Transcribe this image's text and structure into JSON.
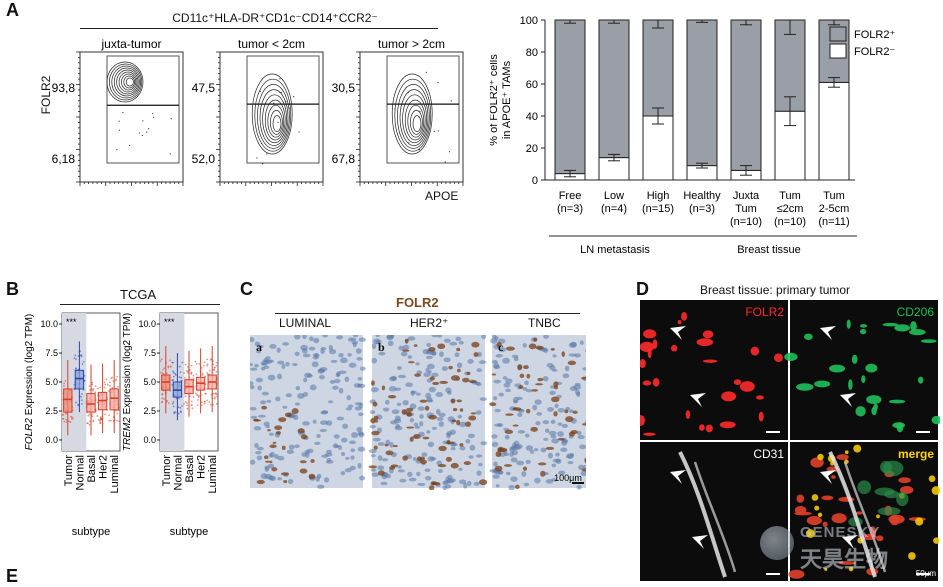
{
  "panel_letters": {
    "a": "A",
    "b": "B",
    "c": "C",
    "d": "D",
    "e": "E"
  },
  "flow": {
    "gate_title": "CD11c⁺HLA-DR⁺CD1c⁻CD14⁺CCR2⁻",
    "y_axis": "FOLR2",
    "x_axis": "APOE",
    "plots": [
      {
        "title": "juxta-tumor",
        "upper": "93,8",
        "lower": "6,18",
        "upper_frac": 0.938
      },
      {
        "title": "tumor < 2cm",
        "upper": "47,5",
        "lower": "52,0",
        "upper_frac": 0.475
      },
      {
        "title": "tumor > 2cm",
        "upper": "30,5",
        "lower": "67,8",
        "upper_frac": 0.305
      }
    ]
  },
  "bar_colors": {
    "folr2_pos": "#9a9ea6",
    "folr2_neg": "#ffffff"
  },
  "chart_data": [
    {
      "type": "bar",
      "stacked": true,
      "ylabel_line1": "% of FOLR2⁺ cells",
      "ylabel_line2": "in APOE⁺ TAMs",
      "ylim": [
        0,
        100
      ],
      "yticks": [
        "0",
        "20",
        "40",
        "60",
        "80",
        "100"
      ],
      "categories": [
        {
          "line1": "Free",
          "line2": "(n=3)",
          "line3": ""
        },
        {
          "line1": "Low",
          "line2": "(n=4)",
          "line3": ""
        },
        {
          "line1": "High",
          "line2": "(n=15)",
          "line3": ""
        },
        {
          "line1": "Healthy",
          "line2": "(n=3)",
          "line3": ""
        },
        {
          "line1": "Juxta",
          "line2": "Tum",
          "line3": "(n=10)"
        },
        {
          "line1": "Tum",
          "line2": "≤2cm",
          "line3": "(n=10)"
        },
        {
          "line1": "Tum",
          "line2": "2-5cm",
          "line3": "(n=11)"
        }
      ],
      "series": [
        {
          "name": "FOLR2⁺",
          "values": [
            96,
            86,
            60,
            91,
            94,
            57,
            39
          ],
          "errors": [
            2,
            2,
            5,
            1.5,
            3,
            9,
            3
          ]
        },
        {
          "name": "FOLR2⁻",
          "values": [
            4,
            14,
            40,
            9,
            6,
            43,
            61
          ],
          "errors": [
            2,
            2,
            5,
            1.5,
            3,
            9,
            3
          ]
        }
      ],
      "groups": [
        {
          "label": "LN metastasis",
          "from": 0,
          "to": 2
        },
        {
          "label": "Breast tissue",
          "from": 3,
          "to": 6
        }
      ]
    },
    {
      "type": "box",
      "title": "TCGA",
      "ylabel": "FOLR2 Expression (log2 TPM)",
      "ylabel_italic": "FOLR2",
      "ylabel_rest": " Expression (log2 TPM)",
      "ylim": [
        0,
        10
      ],
      "yticks": [
        "0.0",
        "2.5",
        "5.0",
        "7.5",
        "10.0"
      ],
      "significance": "***",
      "xlabel": "subtype",
      "categories": [
        "Tumor",
        "Normal",
        "Basal",
        "Her2",
        "Luminal"
      ],
      "medians": [
        3.5,
        5.3,
        3.1,
        3.4,
        3.6
      ],
      "q1": [
        2.4,
        4.4,
        2.4,
        2.6,
        2.6
      ],
      "q3": [
        4.4,
        6.0,
        4.0,
        4.1,
        4.4
      ]
    },
    {
      "type": "box",
      "ylabel": "TREM2 Expression (log2 TPM)",
      "ylabel_italic": "TREM2",
      "ylabel_rest": " Expression (log2 TPM)",
      "ylim": [
        0,
        10
      ],
      "yticks": [
        "0.0",
        "2.5",
        "5.0",
        "7.5",
        "10.0"
      ],
      "significance": "***",
      "xlabel": "subtype",
      "categories": [
        "Tumor",
        "Normal",
        "Basal",
        "Her2",
        "Luminal"
      ],
      "medians": [
        5.0,
        4.3,
        4.6,
        4.9,
        5.0
      ],
      "q1": [
        4.3,
        3.7,
        4.0,
        4.3,
        4.4
      ],
      "q3": [
        5.6,
        5.0,
        5.2,
        5.4,
        5.6
      ]
    }
  ],
  "ihc": {
    "title": "FOLR2",
    "images": [
      {
        "label": "LUMINAL",
        "tag": "a"
      },
      {
        "label": "HER2⁺",
        "tag": "b"
      },
      {
        "label": "TNBC",
        "tag": "c"
      }
    ],
    "scalebar": "100μm"
  },
  "fluor": {
    "title": "Breast tissue: primary tumor",
    "channels": [
      {
        "label": "FOLR2",
        "color": "#ff2a2a"
      },
      {
        "label": "CD206",
        "color": "#1fbf5a"
      },
      {
        "label": "CD31",
        "color": "#ffffff"
      },
      {
        "label": "merge",
        "color": "#ffd400"
      }
    ],
    "scalebar": "50μm"
  },
  "watermark": {
    "line1": "GENESKY",
    "line2": "天昊生物"
  }
}
